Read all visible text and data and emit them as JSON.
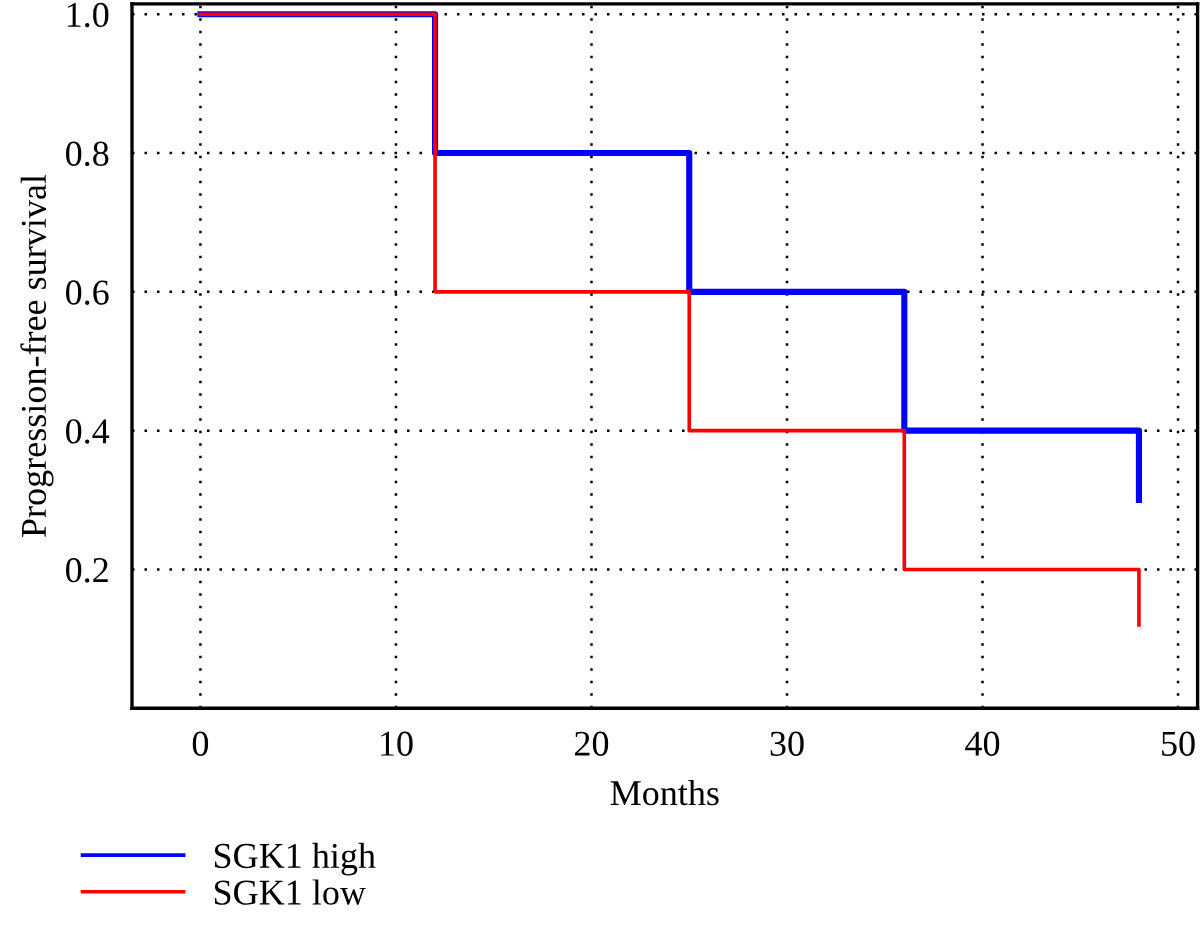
{
  "chart_data": {
    "type": "step",
    "xlabel": "Months",
    "ylabel": "Progression-free survival",
    "series": [
      {
        "name": "SGK1 high",
        "color": "#0000ff",
        "x": [
          0,
          12,
          25,
          36,
          48,
          48
        ],
        "values": [
          1.0,
          0.8,
          0.6,
          0.4,
          0.4,
          0.3
        ]
      },
      {
        "name": "SGK1 low",
        "color": "#ff0000",
        "x": [
          0,
          12,
          25,
          36,
          48,
          48
        ],
        "values": [
          1.0,
          0.6,
          0.4,
          0.2,
          0.2,
          0.12
        ]
      }
    ],
    "xlim": [
      -3.5,
      51
    ],
    "xticks": [
      0,
      10,
      20,
      30,
      40,
      50
    ],
    "ylim": [
      0,
      1.015
    ],
    "yticks": [
      {
        "value": 0.2,
        "label": "0.2"
      },
      {
        "value": 0.4,
        "label": "0.4"
      },
      {
        "value": 0.6,
        "label": "0.6"
      },
      {
        "value": 0.8,
        "label": "0.8"
      },
      {
        "value": 1.0,
        "label": "1.0"
      }
    ],
    "grid": true,
    "legend": "bottom",
    "line_style": "solid"
  }
}
